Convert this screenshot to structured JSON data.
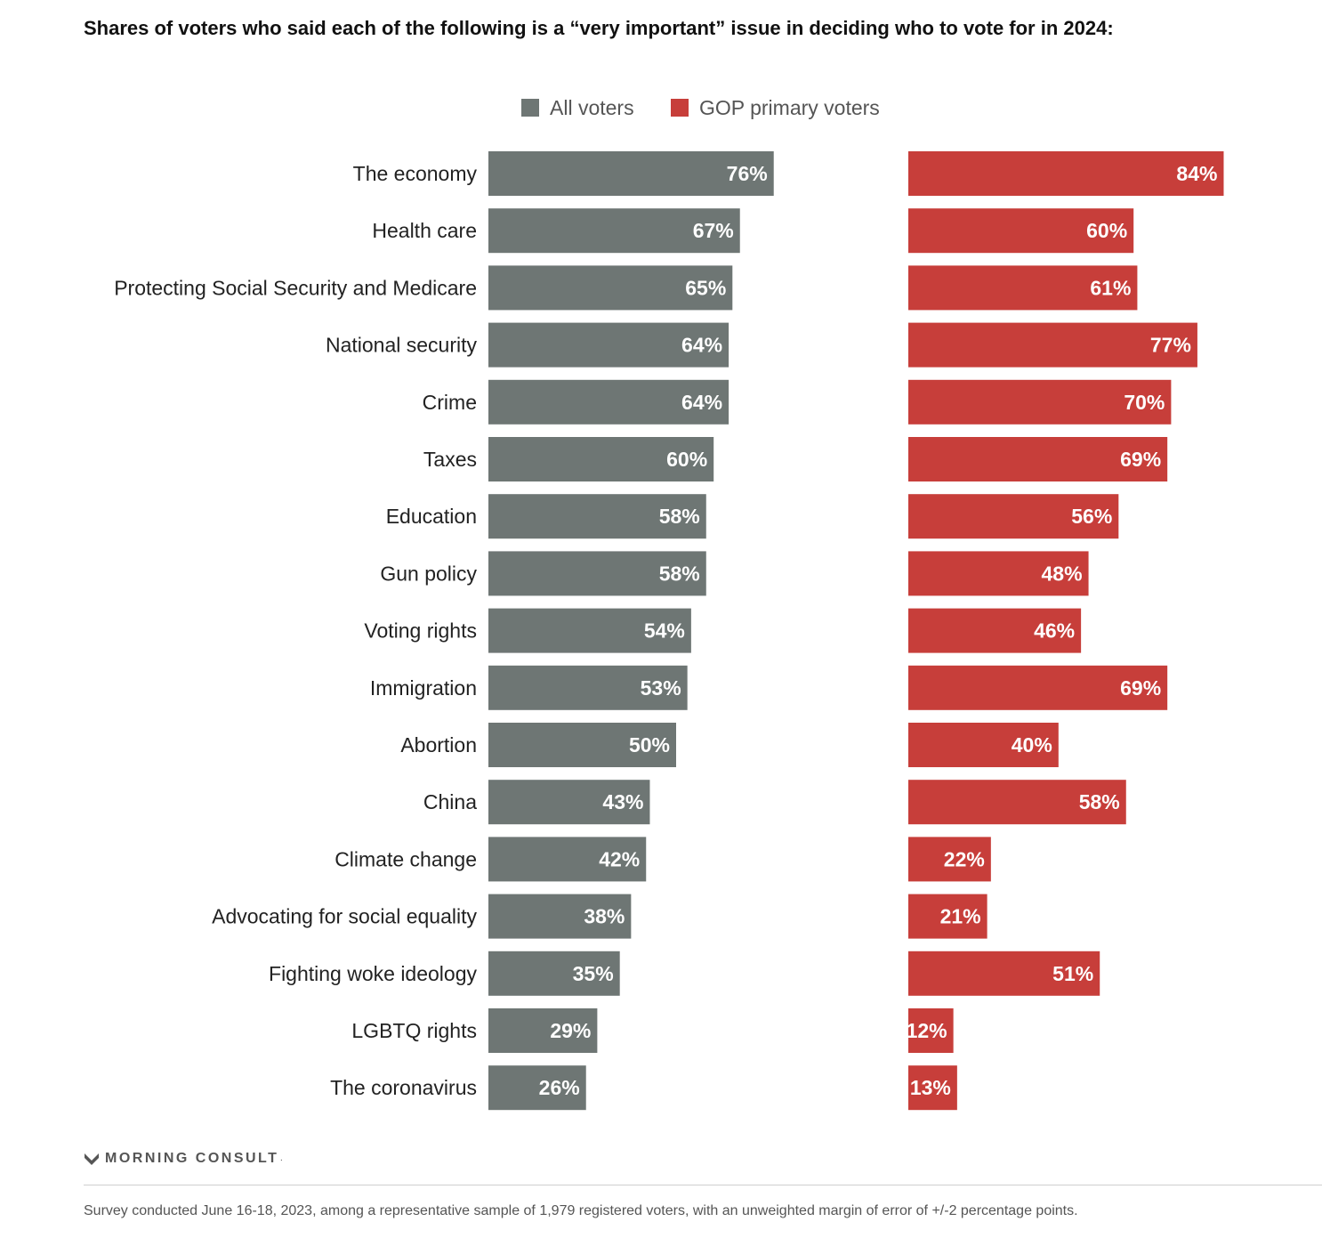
{
  "title": "Shares of voters who said each of the following is a “very important” issue in deciding who to vote for in 2024:",
  "colors": {
    "all_voters": "#6e7674",
    "gop_primary": "#c73e3a"
  },
  "chart_data": {
    "type": "bar",
    "orientation": "horizontal",
    "legend_position": "top",
    "grid": false,
    "value_format": "percent",
    "categories": [
      "The economy",
      "Health care",
      "Protecting Social Security and Medicare",
      "National security",
      "Crime",
      "Taxes",
      "Education",
      "Gun policy",
      "Voting rights",
      "Immigration",
      "Abortion",
      "China",
      "Climate change",
      "Advocating for social equality",
      "Fighting woke ideology",
      "LGBTQ rights",
      "The coronavirus"
    ],
    "series": [
      {
        "name": "All voters",
        "values": [
          76,
          67,
          65,
          64,
          64,
          60,
          58,
          58,
          54,
          53,
          50,
          43,
          42,
          38,
          35,
          29,
          26
        ]
      },
      {
        "name": "GOP primary voters",
        "values": [
          84,
          60,
          61,
          77,
          70,
          69,
          56,
          48,
          46,
          69,
          40,
          58,
          22,
          21,
          51,
          12,
          13
        ]
      }
    ]
  },
  "footer": {
    "brand": "MORNING CONSULT",
    "note": "Survey conducted June 16-18, 2023, among a representative sample of 1,979 registered voters, with an unweighted margin of error of +/-2 percentage points."
  }
}
